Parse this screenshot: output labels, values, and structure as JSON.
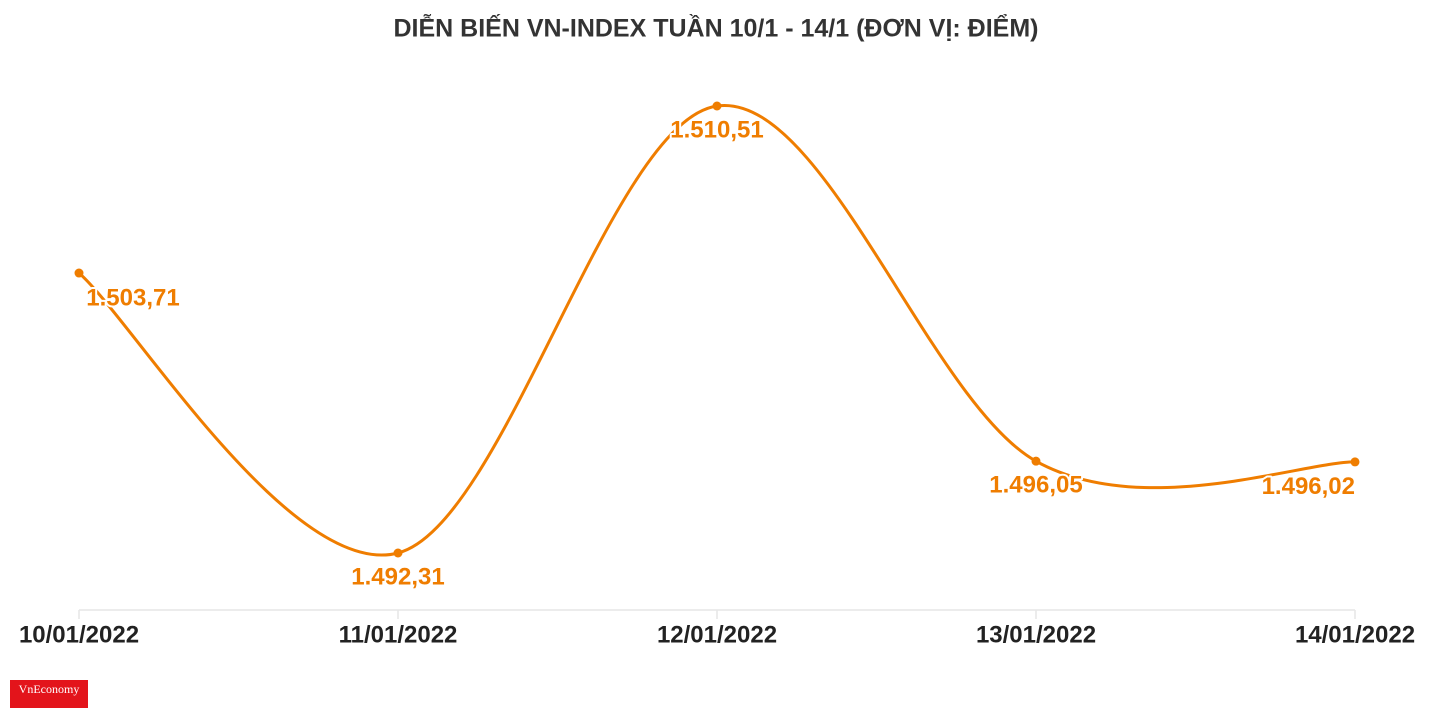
{
  "chart_data": {
    "type": "line",
    "title": "DIỄN BIẾN VN-INDEX TUẦN 10/1 - 14/1 (ĐƠN VỊ: ĐIỂM)",
    "categories": [
      "10/01/2022",
      "11/01/2022",
      "12/01/2022",
      "13/01/2022",
      "14/01/2022"
    ],
    "values": [
      1503.71,
      1492.31,
      1510.51,
      1496.05,
      1496.02
    ],
    "value_labels": [
      "1.503,71",
      "1.492,31",
      "1.510,51",
      "1.496,05",
      "1.496,02"
    ],
    "color": "#ef7d00",
    "grid": false
  },
  "logo": "VnEconomy"
}
